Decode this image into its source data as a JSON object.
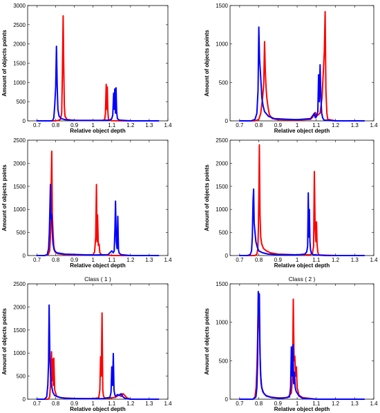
{
  "chart_data": [
    {
      "type": "line",
      "title": "",
      "xlabel": "Relative object depth",
      "ylabel": "Amount of objects points",
      "xlim": [
        0.65,
        1.4
      ],
      "ylim": [
        0,
        3000
      ],
      "xticks": [
        0.7,
        0.8,
        0.9,
        1,
        1.1,
        1.2,
        1.3,
        1.4
      ],
      "yticks": [
        0,
        500,
        1000,
        1500,
        2000,
        2500,
        3000
      ],
      "series": [
        {
          "color": "#ff0000",
          "x": [
            0.7,
            0.8,
            0.815,
            0.825,
            0.832,
            0.836,
            0.84,
            0.843,
            0.846,
            0.85,
            0.86,
            0.88,
            0.92,
            1.0,
            1.05,
            1.062,
            1.066,
            1.07,
            1.073,
            1.076,
            1.079,
            1.082,
            1.086,
            1.092,
            1.1,
            1.2,
            1.35
          ],
          "y": [
            0,
            0,
            15,
            40,
            200,
            1200,
            2730,
            1500,
            400,
            120,
            40,
            20,
            10,
            10,
            15,
            30,
            200,
            950,
            300,
            880,
            250,
            60,
            20,
            10,
            5,
            0,
            0
          ]
        },
        {
          "color": "#0000ff",
          "x": [
            0.7,
            0.78,
            0.785,
            0.79,
            0.795,
            0.8,
            0.804,
            0.808,
            0.812,
            0.818,
            0.83,
            0.85,
            0.9,
            1.0,
            1.05,
            1.09,
            1.1,
            1.105,
            1.11,
            1.113,
            1.116,
            1.12,
            1.123,
            1.126,
            1.13,
            1.14,
            1.2,
            1.35
          ],
          "y": [
            0,
            0,
            20,
            80,
            400,
            880,
            1940,
            900,
            300,
            120,
            60,
            30,
            15,
            10,
            10,
            20,
            60,
            150,
            720,
            300,
            830,
            200,
            860,
            250,
            60,
            20,
            0,
            0
          ]
        }
      ]
    },
    {
      "type": "line",
      "title": "",
      "xlabel": "Relative object depth",
      "ylabel": "Amount of objects points",
      "xlim": [
        0.65,
        1.4
      ],
      "ylim": [
        0,
        1500
      ],
      "xticks": [
        0.7,
        0.8,
        0.9,
        1,
        1.1,
        1.2,
        1.3,
        1.4
      ],
      "yticks": [
        0,
        500,
        1000,
        1500
      ],
      "series": [
        {
          "color": "#ff0000",
          "x": [
            0.7,
            0.78,
            0.8,
            0.81,
            0.82,
            0.826,
            0.83,
            0.834,
            0.838,
            0.842,
            0.848,
            0.855,
            0.87,
            0.9,
            1.0,
            1.07,
            1.085,
            1.095,
            1.1,
            1.11,
            1.12,
            1.13,
            1.138,
            1.142,
            1.146,
            1.15,
            1.155,
            1.16,
            1.2,
            1.35
          ],
          "y": [
            0,
            0,
            20,
            100,
            300,
            500,
            1030,
            650,
            430,
            300,
            180,
            80,
            30,
            15,
            10,
            20,
            60,
            110,
            60,
            80,
            100,
            300,
            700,
            900,
            1420,
            400,
            100,
            20,
            0,
            0
          ]
        },
        {
          "color": "#0000ff",
          "x": [
            0.7,
            0.76,
            0.78,
            0.79,
            0.796,
            0.8,
            0.804,
            0.808,
            0.812,
            0.816,
            0.822,
            0.83,
            0.85,
            0.88,
            0.95,
            1.0,
            1.07,
            1.085,
            1.09,
            1.095,
            1.1,
            1.108,
            1.112,
            1.116,
            1.12,
            1.124,
            1.128,
            1.133,
            1.14,
            1.2,
            1.35
          ],
          "y": [
            0,
            0,
            20,
            100,
            400,
            1220,
            800,
            650,
            480,
            300,
            200,
            120,
            60,
            30,
            20,
            15,
            30,
            80,
            100,
            40,
            50,
            120,
            600,
            250,
            730,
            300,
            100,
            40,
            10,
            0,
            0
          ]
        }
      ]
    },
    {
      "type": "line",
      "title": "",
      "xlabel": "Relative object depth",
      "ylabel": "Amount of objects points",
      "xlim": [
        0.65,
        1.4
      ],
      "ylim": [
        0,
        2500
      ],
      "xticks": [
        0.7,
        0.8,
        0.9,
        1,
        1.1,
        1.2,
        1.3,
        1.4
      ],
      "yticks": [
        0,
        500,
        1000,
        1500,
        2000,
        2500
      ],
      "series": [
        {
          "color": "#ff0000",
          "x": [
            0.7,
            0.74,
            0.76,
            0.768,
            0.772,
            0.775,
            0.779,
            0.782,
            0.786,
            0.79,
            0.796,
            0.81,
            0.85,
            0.95,
            1.0,
            1.008,
            1.014,
            1.018,
            1.021,
            1.024,
            1.028,
            1.032,
            1.036,
            1.045,
            1.1,
            1.35
          ],
          "y": [
            0,
            0,
            20,
            100,
            400,
            1200,
            2260,
            900,
            500,
            200,
            80,
            40,
            20,
            10,
            20,
            80,
            400,
            1540,
            300,
            880,
            220,
            250,
            60,
            20,
            0,
            0
          ]
        },
        {
          "color": "#0000ff",
          "x": [
            0.7,
            0.74,
            0.755,
            0.762,
            0.766,
            0.769,
            0.772,
            0.775,
            0.778,
            0.782,
            0.786,
            0.792,
            0.805,
            0.85,
            1.0,
            1.08,
            1.095,
            1.1,
            1.108,
            1.113,
            1.117,
            1.12,
            1.124,
            1.128,
            1.132,
            1.136,
            1.14,
            1.15,
            1.2,
            1.35
          ],
          "y": [
            0,
            0,
            20,
            150,
            500,
            1000,
            1540,
            800,
            900,
            500,
            250,
            120,
            60,
            30,
            10,
            20,
            80,
            100,
            60,
            100,
            600,
            1180,
            300,
            150,
            850,
            120,
            50,
            20,
            0,
            0
          ]
        }
      ]
    },
    {
      "type": "line",
      "title": "",
      "xlabel": "Relative object depth",
      "ylabel": "Amount of objects points",
      "xlim": [
        0.65,
        1.4
      ],
      "ylim": [
        0,
        2500
      ],
      "xticks": [
        0.7,
        0.8,
        0.9,
        1,
        1.1,
        1.2,
        1.3,
        1.4
      ],
      "yticks": [
        0,
        500,
        1000,
        1500,
        2000,
        2500
      ],
      "series": [
        {
          "color": "#ff0000",
          "x": [
            0.7,
            0.78,
            0.79,
            0.795,
            0.798,
            0.8,
            0.803,
            0.806,
            0.81,
            0.815,
            0.825,
            0.84,
            0.86,
            0.9,
            1.0,
            1.07,
            1.08,
            1.086,
            1.09,
            1.094,
            1.098,
            1.101,
            1.104,
            1.108,
            1.112,
            1.12,
            1.2,
            1.35
          ],
          "y": [
            0,
            0,
            30,
            150,
            600,
            1200,
            2400,
            900,
            400,
            250,
            150,
            100,
            60,
            30,
            15,
            20,
            60,
            200,
            1820,
            600,
            300,
            730,
            250,
            80,
            20,
            10,
            0,
            0
          ]
        },
        {
          "color": "#0000ff",
          "x": [
            0.7,
            0.74,
            0.755,
            0.762,
            0.766,
            0.77,
            0.773,
            0.776,
            0.78,
            0.785,
            0.792,
            0.8,
            0.82,
            0.85,
            0.9,
            1.0,
            1.04,
            1.05,
            1.055,
            1.058,
            1.061,
            1.064,
            1.067,
            1.07,
            1.075,
            1.085,
            1.1,
            1.15,
            1.35
          ],
          "y": [
            0,
            0,
            20,
            100,
            400,
            1200,
            1440,
            700,
            500,
            300,
            180,
            100,
            60,
            30,
            20,
            15,
            30,
            80,
            200,
            1360,
            400,
            1000,
            300,
            120,
            40,
            20,
            10,
            0,
            0
          ]
        }
      ]
    },
    {
      "type": "line",
      "title": "Class ( 1 )",
      "xlabel": "Relative object depth",
      "ylabel": "Amount of objects points",
      "xlim": [
        0.65,
        1.4
      ],
      "ylim": [
        0,
        2500
      ],
      "xticks": [
        0.7,
        0.8,
        0.9,
        1,
        1.1,
        1.2,
        1.3,
        1.4
      ],
      "yticks": [
        0,
        500,
        1000,
        1500,
        2000,
        2500
      ],
      "series": [
        {
          "color": "#ff0000",
          "x": [
            0.7,
            0.76,
            0.768,
            0.772,
            0.775,
            0.778,
            0.781,
            0.784,
            0.787,
            0.79,
            0.795,
            0.805,
            0.83,
            0.9,
            1.0,
            1.03,
            1.036,
            1.04,
            1.044,
            1.048,
            1.052,
            1.055,
            1.06,
            1.08,
            1.12,
            1.14,
            1.15,
            1.16,
            1.17,
            1.18,
            1.2,
            1.35
          ],
          "y": [
            0,
            0,
            50,
            300,
            700,
            1030,
            400,
            870,
            300,
            890,
            200,
            60,
            30,
            15,
            10,
            30,
            200,
            920,
            500,
            1870,
            200,
            80,
            30,
            20,
            40,
            100,
            60,
            120,
            80,
            30,
            0,
            0
          ]
        },
        {
          "color": "#0000ff",
          "x": [
            0.7,
            0.74,
            0.752,
            0.758,
            0.762,
            0.765,
            0.769,
            0.773,
            0.778,
            0.785,
            0.795,
            0.82,
            0.85,
            0.95,
            1.05,
            1.09,
            1.096,
            1.1,
            1.104,
            1.108,
            1.112,
            1.116,
            1.12,
            1.13,
            1.14,
            1.15,
            1.16,
            1.17,
            1.2,
            1.35
          ],
          "y": [
            0,
            0,
            50,
            300,
            800,
            2040,
            900,
            500,
            300,
            150,
            80,
            40,
            20,
            10,
            10,
            40,
            150,
            700,
            300,
            990,
            200,
            100,
            60,
            100,
            80,
            120,
            50,
            20,
            0,
            0
          ]
        }
      ]
    },
    {
      "type": "line",
      "title": "Class ( 2 )",
      "xlabel": "Relative object depth",
      "ylabel": "Amount of objects points",
      "xlim": [
        0.65,
        1.4
      ],
      "ylim": [
        0,
        1500
      ],
      "xticks": [
        0.7,
        0.8,
        0.9,
        1,
        1.1,
        1.2,
        1.3,
        1.4
      ],
      "yticks": [
        0,
        500,
        1000,
        1500
      ],
      "series": [
        {
          "color": "#ff0000",
          "x": [
            0.7,
            0.77,
            0.78,
            0.786,
            0.79,
            0.794,
            0.798,
            0.801,
            0.804,
            0.808,
            0.812,
            0.82,
            0.835,
            0.86,
            0.9,
            0.95,
            0.97,
            0.976,
            0.98,
            0.984,
            0.988,
            0.992,
            0.996,
            1.0,
            1.01,
            1.03,
            1.1,
            1.35
          ],
          "y": [
            0,
            0,
            30,
            150,
            400,
            800,
            1390,
            1000,
            900,
            400,
            200,
            100,
            50,
            30,
            15,
            20,
            80,
            300,
            1300,
            500,
            560,
            300,
            420,
            150,
            50,
            20,
            0,
            0
          ]
        },
        {
          "color": "#0000ff",
          "x": [
            0.7,
            0.77,
            0.785,
            0.79,
            0.794,
            0.797,
            0.8,
            0.803,
            0.806,
            0.81,
            0.815,
            0.825,
            0.84,
            0.87,
            0.92,
            0.96,
            0.966,
            0.97,
            0.974,
            0.978,
            0.982,
            0.986,
            0.99,
            0.995,
            1.0,
            1.01,
            1.03,
            1.1,
            1.35
          ],
          "y": [
            0,
            0,
            30,
            150,
            500,
            1400,
            1100,
            1370,
            600,
            300,
            150,
            80,
            40,
            20,
            10,
            30,
            150,
            680,
            300,
            710,
            200,
            350,
            150,
            100,
            80,
            40,
            10,
            0,
            0
          ]
        }
      ]
    }
  ]
}
